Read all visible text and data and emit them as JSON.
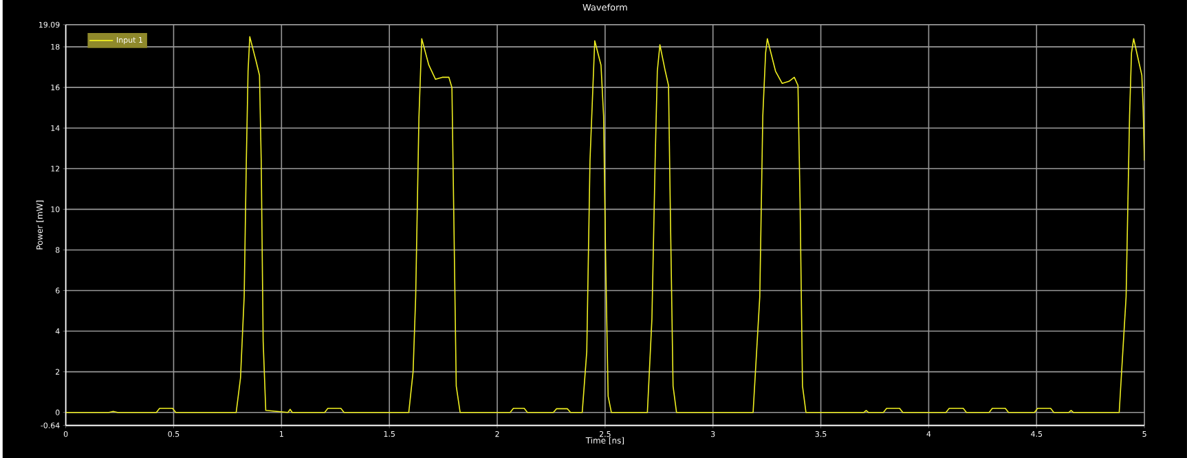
{
  "chart_data": {
    "type": "line",
    "title": "Waveform",
    "xlabel": "Time [ns]",
    "ylabel": "Power [mW]",
    "xlim": [
      0,
      5
    ],
    "ylim": [
      -0.64,
      19.09
    ],
    "xticks": [
      0,
      0.5,
      1,
      1.5,
      2,
      2.5,
      3,
      3.5,
      4,
      4.5,
      5
    ],
    "yticks": [
      -0.64,
      0,
      2,
      4,
      6,
      8,
      10,
      12,
      14,
      16,
      18,
      19.09
    ],
    "grid": true,
    "legend": "top left",
    "series": [
      {
        "name": "Input 1",
        "color": "#f0f020",
        "x": [
          0,
          0.2,
          0.22,
          0.24,
          0.42,
          0.435,
          0.495,
          0.51,
          0.79,
          0.81,
          0.827,
          0.837,
          0.845,
          0.853,
          0.882,
          0.898,
          0.906,
          0.915,
          0.927,
          1.03,
          1.04,
          1.05,
          1.2,
          1.215,
          1.275,
          1.29,
          1.59,
          1.61,
          1.622,
          1.637,
          1.65,
          1.683,
          1.714,
          1.745,
          1.776,
          1.79,
          1.798,
          1.81,
          1.828,
          2.06,
          2.075,
          2.125,
          2.14,
          2.26,
          2.275,
          2.325,
          2.34,
          2.394,
          2.415,
          2.43,
          2.452,
          2.481,
          2.493,
          2.502,
          2.514,
          2.529,
          2.696,
          2.717,
          2.732,
          2.742,
          2.754,
          2.779,
          2.794,
          2.802,
          2.815,
          2.831,
          3.186,
          3.217,
          3.231,
          3.244,
          3.252,
          3.29,
          3.321,
          3.352,
          3.377,
          3.394,
          3.404,
          3.415,
          3.431,
          3.7,
          3.71,
          3.72,
          3.79,
          3.805,
          3.865,
          3.88,
          4.08,
          4.095,
          4.16,
          4.175,
          4.28,
          4.295,
          4.355,
          4.37,
          4.49,
          4.505,
          4.565,
          4.58,
          4.65,
          4.66,
          4.67,
          4.883,
          4.915,
          4.931,
          4.94,
          4.95,
          4.973,
          4.988,
          4.994,
          5
        ],
        "values": [
          0,
          0,
          0.05,
          0,
          0,
          0.2,
          0.2,
          0,
          0,
          1.7,
          5.7,
          12.4,
          16.8,
          18.5,
          17.3,
          16.6,
          12.4,
          3.5,
          0.1,
          0,
          0.15,
          0,
          0,
          0.2,
          0.2,
          0,
          0,
          2.0,
          5.7,
          14.5,
          18.4,
          17.1,
          16.4,
          16.5,
          16.5,
          16.0,
          10.2,
          1.3,
          0,
          0,
          0.2,
          0.2,
          0,
          0,
          0.18,
          0.18,
          0,
          0,
          3.0,
          12.4,
          18.3,
          17.1,
          14.6,
          7.9,
          0.8,
          0,
          0,
          4.6,
          12.4,
          16.8,
          18.1,
          16.8,
          16.1,
          10.2,
          1.3,
          0,
          0,
          5.7,
          14.6,
          17.7,
          18.4,
          16.8,
          16.2,
          16.3,
          16.5,
          16.1,
          10.2,
          1.3,
          0,
          0,
          0.1,
          0,
          0,
          0.2,
          0.2,
          0,
          0,
          0.2,
          0.2,
          0,
          0,
          0.2,
          0.2,
          0,
          0,
          0.2,
          0.2,
          0,
          0,
          0.1,
          0,
          0,
          5.7,
          14.6,
          17.7,
          18.4,
          17.3,
          16.6,
          15.0,
          12.4
        ]
      }
    ]
  }
}
